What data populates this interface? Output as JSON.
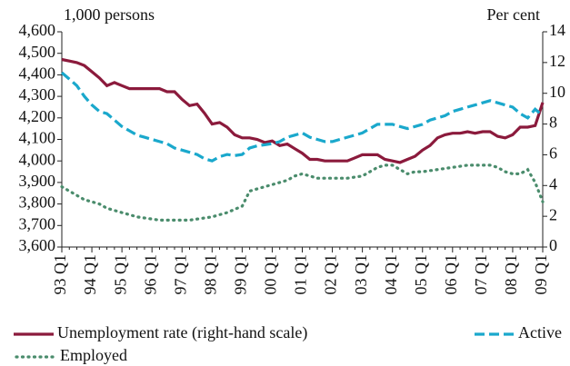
{
  "chart_data": {
    "type": "line",
    "y_label": "1,000 persons",
    "y2_label": "Per cent",
    "categories": [
      "93 Q1",
      null,
      null,
      null,
      "94 Q1",
      null,
      null,
      null,
      "95 Q1",
      null,
      null,
      null,
      "96 Q1",
      null,
      null,
      null,
      "97 Q1",
      null,
      null,
      null,
      "98 Q1",
      null,
      null,
      null,
      "99 Q1",
      null,
      null,
      null,
      "00 Q1",
      null,
      null,
      null,
      "01 Q1",
      null,
      null,
      null,
      "02 Q1",
      null,
      null,
      null,
      "03 Q1",
      null,
      null,
      null,
      "04 Q1",
      null,
      null,
      null,
      "05 Q1",
      null,
      null,
      null,
      "06 Q1",
      null,
      null,
      null,
      "07 Q1",
      null,
      null,
      null,
      "08 Q1",
      null,
      null,
      null,
      "09 Q1"
    ],
    "ylim": [
      3600,
      4600
    ],
    "yticks": [
      {
        "value": 3600,
        "label": "3,600"
      },
      {
        "value": 3700,
        "label": "3,700"
      },
      {
        "value": 3800,
        "label": "3,800"
      },
      {
        "value": 3900,
        "label": "3,900"
      },
      {
        "value": 4000,
        "label": "4,000"
      },
      {
        "value": 4100,
        "label": "4,100"
      },
      {
        "value": 4200,
        "label": "4,200"
      },
      {
        "value": 4300,
        "label": "4,300"
      },
      {
        "value": 4400,
        "label": "4,400"
      },
      {
        "value": 4500,
        "label": "4,500"
      },
      {
        "value": 4600,
        "label": "4,600"
      }
    ],
    "y2lim": [
      0,
      14
    ],
    "y2ticks": [
      0,
      2,
      4,
      6,
      8,
      10,
      12,
      14
    ],
    "grid": false,
    "series": [
      {
        "name": "Unemployment rate (right-hand scale)",
        "color": "#8b1a3c",
        "axis": "y2",
        "style": "solid",
        "values": [
          12.2,
          12.1,
          12.0,
          11.8,
          11.4,
          11.0,
          10.5,
          10.7,
          10.5,
          10.3,
          10.3,
          10.3,
          10.3,
          10.3,
          10.1,
          10.1,
          9.6,
          9.2,
          9.3,
          8.7,
          8.0,
          8.1,
          7.8,
          7.3,
          7.1,
          7.1,
          7.0,
          6.8,
          6.9,
          6.6,
          6.7,
          6.4,
          6.1,
          5.7,
          5.7,
          5.6,
          5.6,
          5.6,
          5.6,
          5.8,
          6.0,
          6.0,
          6.0,
          5.7,
          5.6,
          5.5,
          5.7,
          5.9,
          6.3,
          6.6,
          7.1,
          7.3,
          7.4,
          7.4,
          7.5,
          7.4,
          7.5,
          7.5,
          7.2,
          7.1,
          7.3,
          7.8,
          7.8,
          7.9,
          9.4
        ]
      },
      {
        "name": "Active",
        "color": "#1aa8cc",
        "style": "dashed",
        "values": [
          4410,
          4380,
          4350,
          4300,
          4260,
          4230,
          4220,
          4190,
          4160,
          4140,
          4120,
          4110,
          4100,
          4090,
          4080,
          4060,
          4050,
          4040,
          4030,
          4010,
          4000,
          4020,
          4030,
          4025,
          4030,
          4060,
          4070,
          4075,
          4080,
          4090,
          4110,
          4120,
          4130,
          4110,
          4100,
          4090,
          4090,
          4100,
          4110,
          4120,
          4130,
          4150,
          4170,
          4170,
          4170,
          4160,
          4150,
          4160,
          4170,
          4190,
          4200,
          4210,
          4230,
          4240,
          4250,
          4260,
          4270,
          4280,
          4270,
          4260,
          4250,
          4220,
          4200,
          4240,
          4210
        ]
      },
      {
        "name": "Employed",
        "color": "#4a8c6c",
        "style": "dotted",
        "values": [
          3880,
          3860,
          3840,
          3820,
          3810,
          3800,
          3780,
          3770,
          3760,
          3750,
          3740,
          3735,
          3730,
          3725,
          3725,
          3725,
          3725,
          3725,
          3730,
          3735,
          3740,
          3750,
          3760,
          3775,
          3790,
          3860,
          3870,
          3880,
          3890,
          3900,
          3910,
          3930,
          3940,
          3930,
          3920,
          3920,
          3920,
          3920,
          3920,
          3925,
          3930,
          3950,
          3970,
          3980,
          3980,
          3960,
          3940,
          3950,
          3950,
          3955,
          3960,
          3965,
          3970,
          3975,
          3980,
          3980,
          3980,
          3980,
          3970,
          3950,
          3940,
          3940,
          3960,
          3900,
          3810
        ]
      }
    ]
  }
}
